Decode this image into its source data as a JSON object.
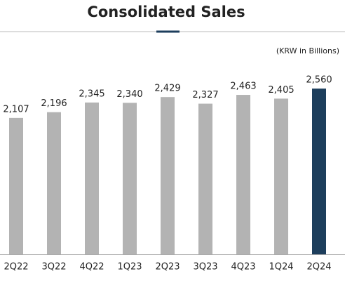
{
  "chart_data": {
    "type": "bar",
    "title": "Consolidated Sales",
    "unit_note": "(KRW in Billions)",
    "categories": [
      "2Q22",
      "3Q22",
      "4Q22",
      "1Q23",
      "2Q23",
      "3Q23",
      "4Q23",
      "1Q24",
      "2Q24"
    ],
    "values": [
      2107,
      2196,
      2345,
      2340,
      2429,
      2327,
      2463,
      2405,
      2560
    ],
    "value_labels": [
      "2,107",
      "2,196",
      "2,345",
      "2,340",
      "2,429",
      "2,327",
      "2,463",
      "2,405",
      "2,560"
    ],
    "colors": [
      "#b3b3b3",
      "#b3b3b3",
      "#b3b3b3",
      "#b3b3b3",
      "#b3b3b3",
      "#b3b3b3",
      "#b3b3b3",
      "#b3b3b3",
      "#1d3e5c"
    ],
    "ylim": [
      0,
      2800
    ]
  }
}
